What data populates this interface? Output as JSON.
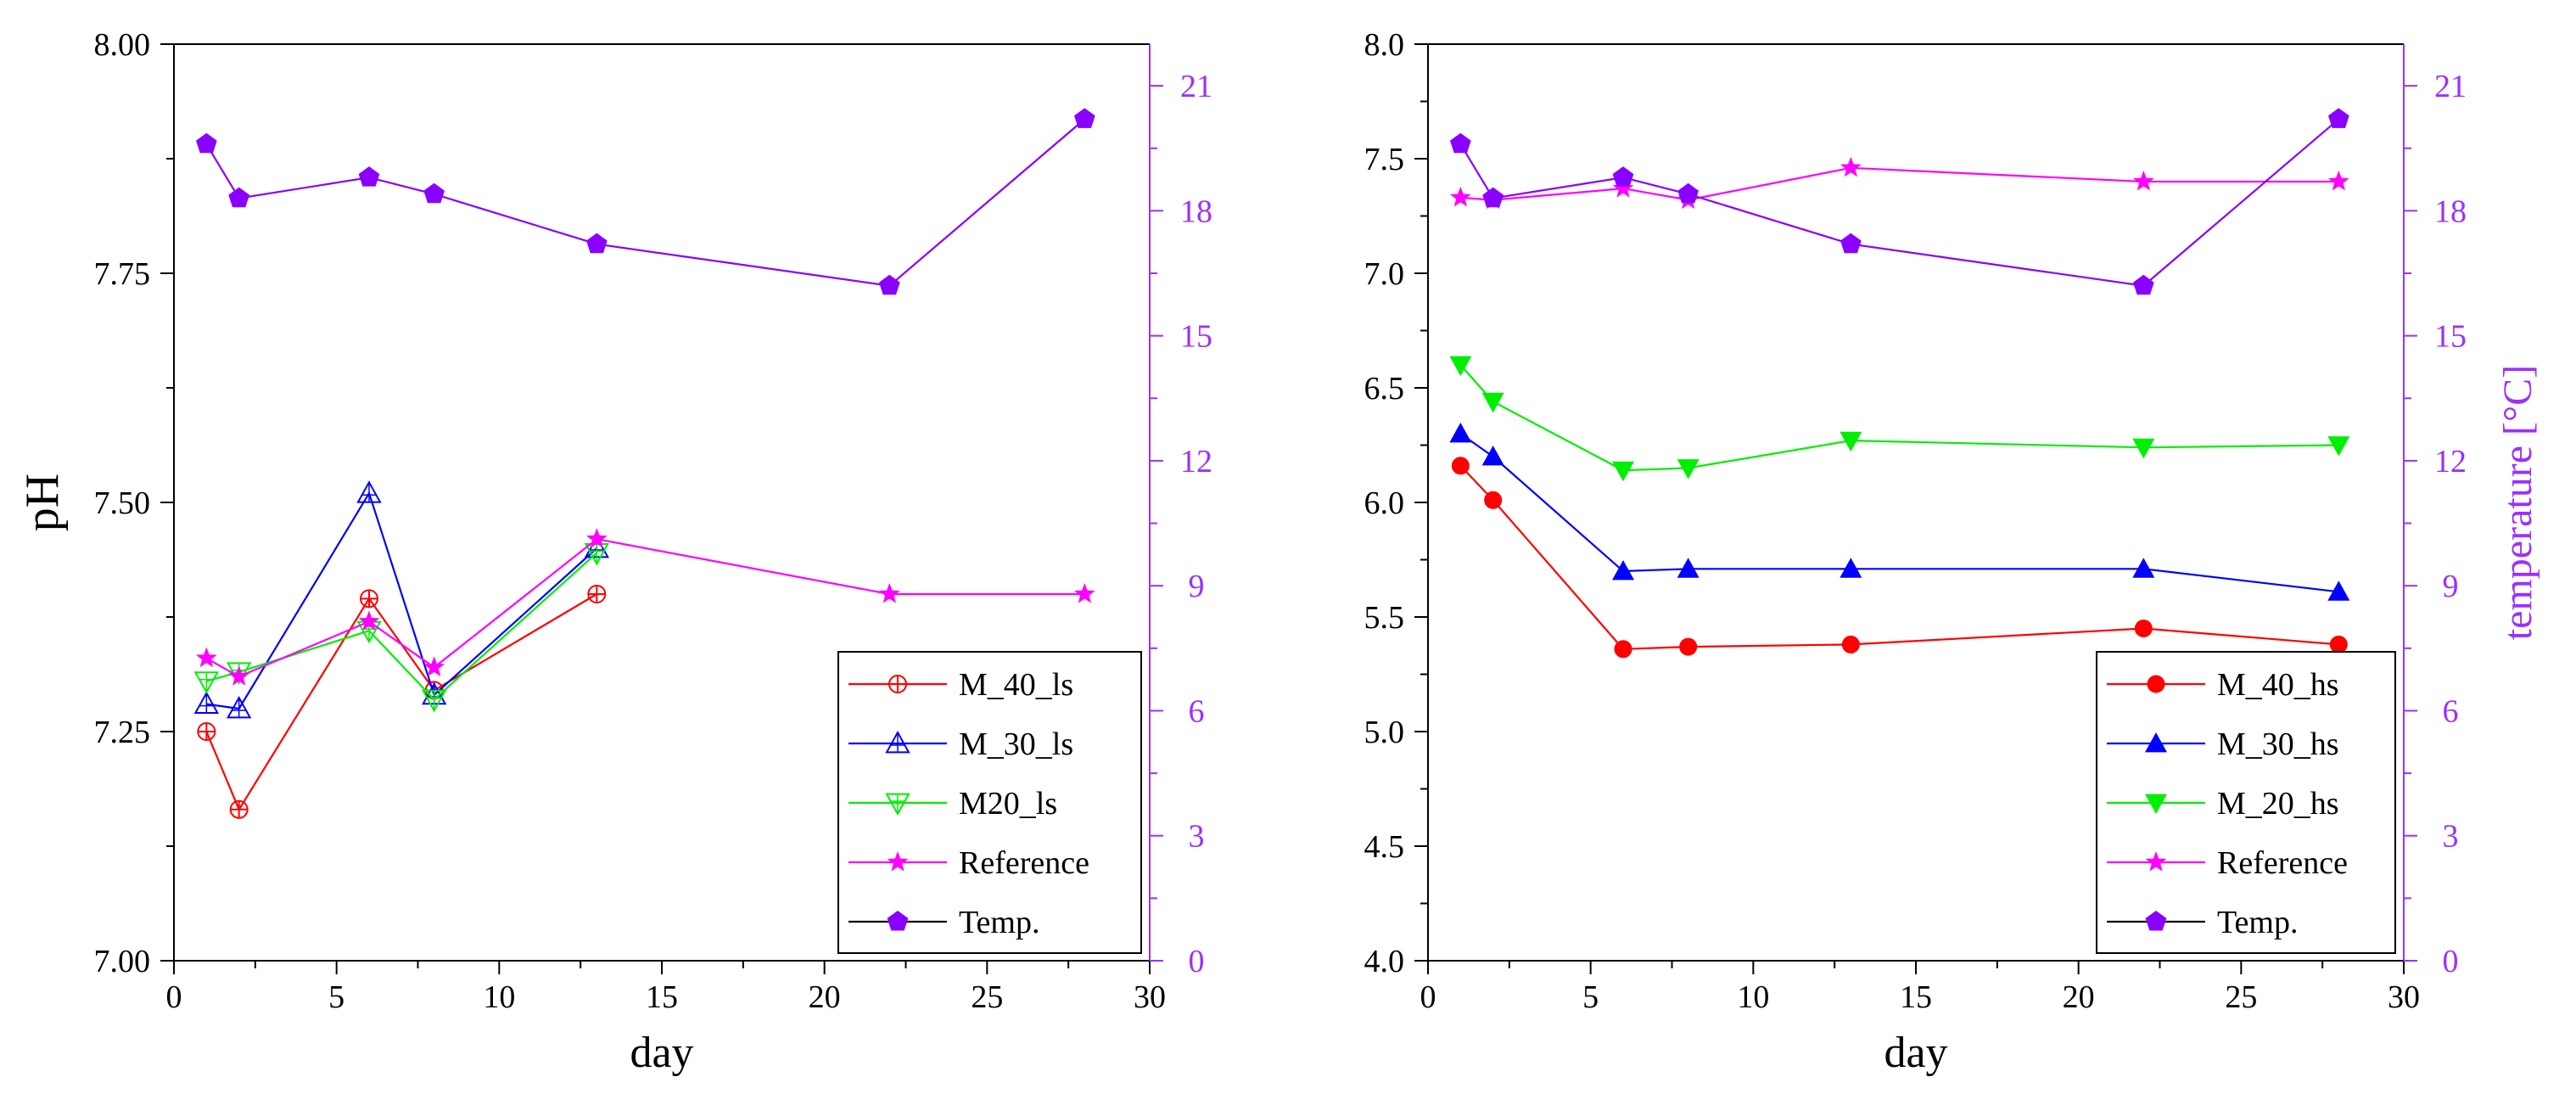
{
  "colors": {
    "M_40": "#ff0000",
    "M_30": "#0000ff",
    "M_20": "#00ee00",
    "Reference": "#ff00ff",
    "Temp": "#8a00ff",
    "axis": "#000000",
    "temp_axis": "#9b30ff"
  },
  "chart_data": [
    {
      "type": "line",
      "title": "",
      "xlabel": "day",
      "ylabel": "pH",
      "y2label": "",
      "xlim": [
        0,
        30
      ],
      "ylim": [
        7.0,
        8.0
      ],
      "y2lim": [
        0,
        22
      ],
      "xticks": [
        "0",
        "5",
        "10",
        "15",
        "20",
        "25",
        "30"
      ],
      "yticks": [
        "7.00",
        "7.25",
        "7.50",
        "7.75",
        "8.00"
      ],
      "y2ticks": [
        "0",
        "3",
        "6",
        "9",
        "12",
        "15",
        "18",
        "21"
      ],
      "grid": false,
      "legend_position": "bottom-right",
      "series": [
        {
          "name": "M_40_ls",
          "key": "M_40",
          "marker": "circle-plus",
          "axis": "left",
          "x": [
            1,
            2,
            6,
            8,
            13
          ],
          "values": [
            7.25,
            7.165,
            7.395,
            7.295,
            7.4
          ]
        },
        {
          "name": "M_30_ls",
          "key": "M_30",
          "marker": "triangle-open",
          "axis": "left",
          "x": [
            1,
            2,
            6,
            8,
            13
          ],
          "values": [
            7.28,
            7.275,
            7.51,
            7.29,
            7.45
          ]
        },
        {
          "name": "M20_ls",
          "key": "M_20",
          "marker": "triangle-down-open",
          "axis": "left",
          "x": [
            1,
            2,
            6,
            8,
            13
          ],
          "values": [
            7.305,
            7.315,
            7.36,
            7.285,
            7.445
          ]
        },
        {
          "name": "Reference",
          "key": "Reference",
          "marker": "star",
          "axis": "left",
          "x": [
            1,
            2,
            6,
            8,
            13,
            22,
            28
          ],
          "values": [
            7.33,
            7.31,
            7.37,
            7.32,
            7.46,
            7.4,
            7.4
          ]
        },
        {
          "name": "Temp.",
          "key": "Temp",
          "marker": "pentagon",
          "axis": "right",
          "x": [
            1,
            2,
            6,
            8,
            13,
            22,
            28
          ],
          "values": [
            19.6,
            18.3,
            18.8,
            18.4,
            17.2,
            16.2,
            20.2
          ]
        }
      ]
    },
    {
      "type": "line",
      "title": "",
      "xlabel": "day",
      "ylabel": "",
      "y2label": "temperature [°C]",
      "xlim": [
        0,
        30
      ],
      "ylim": [
        4.0,
        8.0
      ],
      "y2lim": [
        0,
        22
      ],
      "xticks": [
        "0",
        "5",
        "10",
        "15",
        "20",
        "25",
        "30"
      ],
      "yticks": [
        "4.0",
        "4.5",
        "5.0",
        "5.5",
        "6.0",
        "6.5",
        "7.0",
        "7.5",
        "8.0"
      ],
      "y2ticks": [
        "0",
        "3",
        "6",
        "9",
        "12",
        "15",
        "18",
        "21"
      ],
      "grid": false,
      "legend_position": "bottom-right",
      "series": [
        {
          "name": "M_40_hs",
          "key": "M_40",
          "marker": "circle",
          "axis": "left",
          "x": [
            1,
            2,
            6,
            8,
            13,
            22,
            28
          ],
          "values": [
            6.16,
            6.01,
            5.36,
            5.37,
            5.38,
            5.45,
            5.38
          ]
        },
        {
          "name": "M_30_hs",
          "key": "M_30",
          "marker": "triangle",
          "axis": "left",
          "x": [
            1,
            2,
            6,
            8,
            13,
            22,
            28
          ],
          "values": [
            6.3,
            6.2,
            5.7,
            5.71,
            5.71,
            5.71,
            5.61
          ]
        },
        {
          "name": "M_20_hs",
          "key": "M_20",
          "marker": "triangle-down",
          "axis": "left",
          "x": [
            1,
            2,
            6,
            8,
            13,
            22,
            28
          ],
          "values": [
            6.6,
            6.44,
            6.14,
            6.15,
            6.27,
            6.24,
            6.25
          ]
        },
        {
          "name": "Reference",
          "key": "Reference",
          "marker": "star",
          "axis": "left",
          "x": [
            1,
            2,
            6,
            8,
            13,
            22,
            28
          ],
          "values": [
            7.33,
            7.32,
            7.37,
            7.32,
            7.46,
            7.4,
            7.4
          ]
        },
        {
          "name": "Temp.",
          "key": "Temp",
          "marker": "pentagon",
          "axis": "right",
          "x": [
            1,
            2,
            6,
            8,
            13,
            22,
            28
          ],
          "values": [
            19.6,
            18.3,
            18.8,
            18.4,
            17.2,
            16.2,
            20.2
          ]
        }
      ]
    }
  ]
}
